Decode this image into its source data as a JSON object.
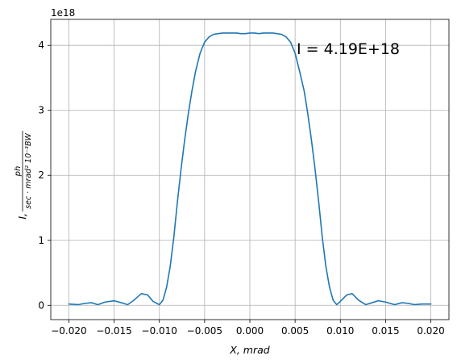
{
  "chart_data": {
    "type": "line",
    "title": "",
    "xlabel": "X, mrad",
    "ylabel": {
      "prefix": "I,",
      "numerator": "ph",
      "denominator": "sec · mrad² 10⁻³BW"
    },
    "offset_text": "1e18",
    "annotation": "I = 4.19E+18",
    "grid": true,
    "xlim": [
      -0.022,
      0.022
    ],
    "ylim": [
      -0.22,
      4.4
    ],
    "xticks": [
      -0.02,
      -0.015,
      -0.01,
      -0.005,
      0.0,
      0.005,
      0.01,
      0.015,
      0.02
    ],
    "xtick_labels": [
      "−0.020",
      "−0.015",
      "−0.010",
      "−0.005",
      "0.000",
      "0.005",
      "0.010",
      "0.015",
      "0.020"
    ],
    "yticks": [
      0,
      1,
      2,
      3,
      4
    ],
    "ytick_labels": [
      "0",
      "1",
      "2",
      "3",
      "4"
    ],
    "series": [
      {
        "color": "#1f77b4",
        "x": [
          -0.02,
          -0.019,
          -0.0182,
          -0.0175,
          -0.0168,
          -0.016,
          -0.015,
          -0.0142,
          -0.0135,
          -0.0128,
          -0.012,
          -0.0113,
          -0.0107,
          -0.01,
          -0.0096,
          -0.0092,
          -0.0088,
          -0.0084,
          -0.008,
          -0.0076,
          -0.0072,
          -0.0068,
          -0.0064,
          -0.006,
          -0.0055,
          -0.005,
          -0.0045,
          -0.004,
          -0.0035,
          -0.003,
          -0.0025,
          -0.002,
          -0.0015,
          -0.001,
          -0.0005,
          0.0,
          0.0005,
          0.001,
          0.0015,
          0.002,
          0.0025,
          0.003,
          0.0035,
          0.004,
          0.0045,
          0.005,
          0.0055,
          0.006,
          0.0064,
          0.0068,
          0.0072,
          0.0076,
          0.008,
          0.0084,
          0.0088,
          0.0092,
          0.0096,
          0.01,
          0.0107,
          0.0113,
          0.012,
          0.0128,
          0.0135,
          0.0142,
          0.015,
          0.016,
          0.0168,
          0.0175,
          0.0182,
          0.019,
          0.02
        ],
        "values": [
          0.02,
          0.01,
          0.03,
          0.04,
          0.01,
          0.05,
          0.07,
          0.04,
          0.01,
          0.08,
          0.18,
          0.16,
          0.06,
          0.01,
          0.08,
          0.28,
          0.6,
          1.05,
          1.6,
          2.1,
          2.55,
          2.95,
          3.3,
          3.6,
          3.88,
          4.05,
          4.13,
          4.17,
          4.18,
          4.19,
          4.19,
          4.19,
          4.19,
          4.18,
          4.18,
          4.19,
          4.19,
          4.18,
          4.19,
          4.19,
          4.19,
          4.18,
          4.17,
          4.13,
          4.05,
          3.88,
          3.6,
          3.3,
          2.95,
          2.55,
          2.1,
          1.6,
          1.05,
          0.6,
          0.28,
          0.08,
          0.01,
          0.06,
          0.16,
          0.18,
          0.08,
          0.01,
          0.04,
          0.07,
          0.05,
          0.01,
          0.04,
          0.03,
          0.01,
          0.02,
          0.02
        ]
      }
    ]
  }
}
